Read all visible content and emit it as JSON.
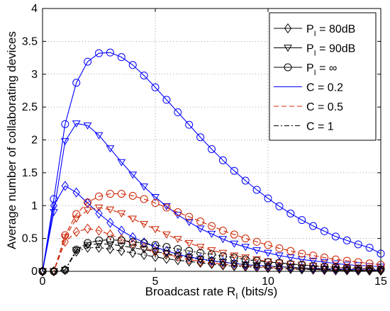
{
  "chart_data": {
    "type": "line",
    "xlabel": "Broadcast rate R",
    "xlabel_sub": "I",
    "xlabel_unit": " (bits/s)",
    "ylabel": "Average number of collaborating devices",
    "xlim": [
      0,
      15
    ],
    "ylim": [
      0,
      4
    ],
    "xticks": [
      0,
      5,
      10,
      15
    ],
    "yticks": [
      0,
      0.5,
      1,
      1.5,
      2,
      2.5,
      3,
      3.5,
      4
    ],
    "xtick_labels": [
      "0",
      "5",
      "10",
      "15"
    ],
    "ytick_labels": [
      "0",
      "0.5",
      "1",
      "1.5",
      "2",
      "2.5",
      "3",
      "3.5",
      "4"
    ],
    "grid": true,
    "legend_position": "top-right",
    "legend": [
      {
        "label": "P",
        "sub": "I",
        "suffix": " = 80dB",
        "marker": "diamond",
        "line": "solid",
        "color": "#000000"
      },
      {
        "label": "P",
        "sub": "I",
        "suffix": " = 90dB",
        "marker": "triangle-down",
        "line": "solid",
        "color": "#000000"
      },
      {
        "label": "P",
        "sub": "I",
        "suffix": " = ∞",
        "marker": "circle",
        "line": "solid",
        "color": "#000000"
      },
      {
        "label": "C = 0.2",
        "marker": "none",
        "line": "solid",
        "color": "#0000ff"
      },
      {
        "label": "C = 0.5",
        "marker": "none",
        "line": "dashed",
        "color": "#cc2200"
      },
      {
        "label": "C = 1",
        "marker": "none",
        "line": "dashdot",
        "color": "#000000"
      }
    ],
    "x": [
      0,
      0.5,
      1,
      1.5,
      2,
      2.5,
      3,
      3.5,
      4,
      4.5,
      5,
      5.5,
      6,
      6.5,
      7,
      7.5,
      8,
      8.5,
      9,
      9.5,
      10,
      10.5,
      11,
      11.5,
      12,
      12.5,
      13,
      13.5,
      14,
      14.5,
      15
    ],
    "series": [
      {
        "color": "#0000ff",
        "dash": "solid",
        "marker": "circle",
        "values": [
          0,
          1.1,
          2.24,
          2.87,
          3.19,
          3.32,
          3.33,
          3.26,
          3.14,
          2.98,
          2.8,
          2.61,
          2.42,
          2.23,
          2.04,
          1.86,
          1.69,
          1.53,
          1.38,
          1.24,
          1.11,
          0.99,
          0.88,
          0.78,
          0.69,
          0.61,
          0.53,
          0.47,
          0.41,
          0.36,
          0.27
        ]
      },
      {
        "color": "#0000ff",
        "dash": "solid",
        "marker": "triangle-down",
        "values": [
          0,
          0.9,
          1.98,
          2.25,
          2.22,
          2.07,
          1.87,
          1.66,
          1.47,
          1.29,
          1.13,
          0.99,
          0.86,
          0.75,
          0.65,
          0.57,
          0.49,
          0.42,
          0.37,
          0.32,
          0.28,
          0.24,
          0.21,
          0.18,
          0.16,
          0.14,
          0.12,
          0.1,
          0.09,
          0.08,
          0.07
        ]
      },
      {
        "color": "#0000ff",
        "dash": "solid",
        "marker": "diamond",
        "values": [
          0,
          1.0,
          1.3,
          1.2,
          1.04,
          0.88,
          0.74,
          0.62,
          0.52,
          0.44,
          0.37,
          0.31,
          0.26,
          0.22,
          0.19,
          0.16,
          0.14,
          0.12,
          0.1,
          0.09,
          0.08,
          0.07,
          0.06,
          0.05,
          0.045,
          0.04,
          0.035,
          0.03,
          0.025,
          0.02,
          0.02
        ]
      },
      {
        "color": "#cc2200",
        "dash": "dashed",
        "marker": "circle",
        "values": [
          0,
          0,
          0.55,
          0.87,
          1.05,
          1.14,
          1.18,
          1.18,
          1.15,
          1.1,
          1.04,
          0.97,
          0.9,
          0.83,
          0.76,
          0.69,
          0.62,
          0.56,
          0.5,
          0.45,
          0.4,
          0.35,
          0.31,
          0.27,
          0.24,
          0.21,
          0.18,
          0.16,
          0.14,
          0.12,
          0.1
        ]
      },
      {
        "color": "#cc2200",
        "dash": "dashed",
        "marker": "triangle-down",
        "values": [
          0,
          0,
          0.52,
          0.8,
          0.93,
          0.97,
          0.94,
          0.88,
          0.8,
          0.72,
          0.64,
          0.56,
          0.49,
          0.43,
          0.37,
          0.32,
          0.28,
          0.24,
          0.21,
          0.18,
          0.15,
          0.13,
          0.11,
          0.1,
          0.085,
          0.07,
          0.06,
          0.05,
          0.045,
          0.04,
          0.035
        ]
      },
      {
        "color": "#cc2200",
        "dash": "dashed",
        "marker": "diamond",
        "values": [
          0,
          0,
          0.45,
          0.6,
          0.65,
          0.62,
          0.56,
          0.49,
          0.42,
          0.36,
          0.3,
          0.26,
          0.22,
          0.18,
          0.15,
          0.13,
          0.11,
          0.09,
          0.08,
          0.07,
          0.06,
          0.05,
          0.04,
          0.035,
          0.03,
          0.025,
          0.02,
          0.02,
          0.015,
          0.015,
          0.01
        ]
      },
      {
        "color": "#000000",
        "dash": "dashdot",
        "marker": "circle",
        "values": [
          0,
          0,
          0.02,
          0.33,
          0.43,
          0.47,
          0.48,
          0.47,
          0.45,
          0.43,
          0.4,
          0.37,
          0.34,
          0.31,
          0.28,
          0.26,
          0.23,
          0.21,
          0.18,
          0.16,
          0.14,
          0.13,
          0.11,
          0.1,
          0.08,
          0.07,
          0.06,
          0.05,
          0.045,
          0.04,
          0.03
        ]
      },
      {
        "color": "#000000",
        "dash": "dashdot",
        "marker": "triangle-down",
        "values": [
          0,
          0,
          0.02,
          0.32,
          0.4,
          0.42,
          0.41,
          0.39,
          0.36,
          0.33,
          0.3,
          0.27,
          0.24,
          0.21,
          0.18,
          0.16,
          0.14,
          0.12,
          0.1,
          0.09,
          0.08,
          0.07,
          0.06,
          0.05,
          0.04,
          0.035,
          0.03,
          0.025,
          0.02,
          0.015,
          0.01
        ]
      },
      {
        "color": "#000000",
        "dash": "dashdot",
        "marker": "diamond",
        "values": [
          0,
          0,
          0.02,
          0.3,
          0.36,
          0.36,
          0.34,
          0.31,
          0.28,
          0.25,
          0.22,
          0.19,
          0.17,
          0.15,
          0.13,
          0.11,
          0.09,
          0.08,
          0.07,
          0.06,
          0.05,
          0.04,
          0.035,
          0.03,
          0.025,
          0.02,
          0.015,
          0.015,
          0.01,
          0.01,
          0.01
        ]
      }
    ]
  }
}
